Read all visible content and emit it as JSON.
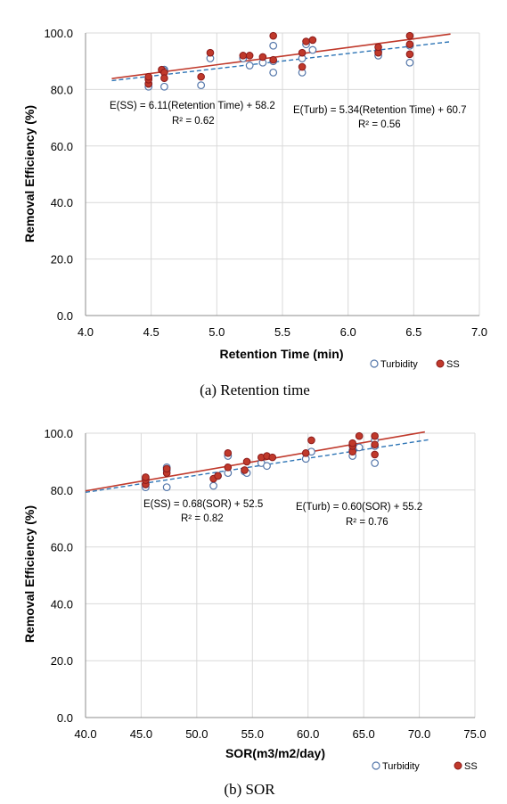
{
  "chart_data": [
    {
      "type": "scatter",
      "caption": "(a)  Retention  time",
      "xlabel": "Retention Time (min)",
      "ylabel": "Removal Efficiency (%)",
      "xlim": [
        4.0,
        7.0
      ],
      "ylim": [
        0.0,
        100.0
      ],
      "xticks": [
        "4.0",
        "4.5",
        "5.0",
        "5.5",
        "6.0",
        "6.5",
        "7.0"
      ],
      "yticks": [
        "0.0",
        "20.0",
        "40.0",
        "60.0",
        "80.0",
        "100.0"
      ],
      "grid": true,
      "legend_position": "bottom-right",
      "series": [
        {
          "name": "Turbidity",
          "marker": "open-circle",
          "x": [
            4.48,
            4.48,
            4.48,
            4.6,
            4.6,
            4.6,
            4.88,
            4.95,
            5.2,
            5.25,
            5.35,
            5.43,
            5.43,
            5.43,
            5.65,
            5.65,
            5.68,
            5.73,
            6.23,
            6.23,
            6.47,
            6.47
          ],
          "y": [
            81.0,
            82.0,
            84.0,
            81.0,
            87.0,
            86.5,
            81.5,
            91.0,
            91.0,
            88.5,
            89.5,
            86.0,
            90.0,
            95.5,
            86.0,
            91.0,
            96.0,
            94.0,
            92.0,
            93.5,
            89.5,
            95.5
          ]
        },
        {
          "name": "SS",
          "marker": "filled-circle",
          "x": [
            4.48,
            4.48,
            4.48,
            4.58,
            4.6,
            4.6,
            4.88,
            4.95,
            5.2,
            5.25,
            5.35,
            5.43,
            5.43,
            5.65,
            5.65,
            5.68,
            5.73,
            6.23,
            6.23,
            6.47,
            6.47,
            6.47
          ],
          "y": [
            82.0,
            83.5,
            84.5,
            87.0,
            86.0,
            84.0,
            84.5,
            93.0,
            92.0,
            92.0,
            91.5,
            90.5,
            99.0,
            88.0,
            93.0,
            97.0,
            97.5,
            93.0,
            95.0,
            92.5,
            96.0,
            99.0
          ]
        }
      ],
      "trendlines": [
        {
          "series": "SS",
          "color": "#c0392b",
          "style": "solid",
          "slope": 6.11,
          "intercept": 58.2,
          "x_range": [
            4.2,
            6.78
          ]
        },
        {
          "series": "Turbidity",
          "color": "#2e75b6",
          "style": "dashed",
          "slope": 5.34,
          "intercept": 60.7,
          "x_range": [
            4.2,
            6.78
          ]
        }
      ],
      "annotations": [
        {
          "text": "E(SS) = 6.11(Retention Time) + 58.2"
        },
        {
          "text": "R² = 0.62"
        },
        {
          "text": "E(Turb) = 5.34(Retention Time) + 60.7"
        },
        {
          "text": "R² = 0.56"
        }
      ]
    },
    {
      "type": "scatter",
      "caption": "(b)  SOR",
      "xlabel": "SOR(m3/m2/day)",
      "ylabel": "Removal Efficiency (%)",
      "xlim": [
        40.0,
        75.0
      ],
      "ylim": [
        0.0,
        100.0
      ],
      "xticks": [
        "40.0",
        "45.0",
        "50.0",
        "55.0",
        "60.0",
        "65.0",
        "70.0",
        "75.0"
      ],
      "yticks": [
        "0.0",
        "20.0",
        "40.0",
        "60.0",
        "80.0",
        "100.0"
      ],
      "grid": true,
      "legend_position": "bottom-right",
      "series": [
        {
          "name": "Turbidity",
          "marker": "open-circle",
          "x": [
            45.4,
            45.4,
            45.4,
            47.3,
            47.3,
            47.3,
            51.5,
            51.9,
            52.8,
            52.8,
            54.3,
            54.5,
            55.8,
            56.3,
            59.8,
            60.3,
            64.0,
            64.0,
            64.0,
            64.6,
            66.0,
            66.0,
            66.0
          ],
          "y": [
            81.0,
            82.0,
            84.0,
            81.0,
            87.0,
            88.0,
            81.5,
            85.0,
            86.0,
            92.0,
            86.5,
            86.0,
            89.5,
            88.5,
            91.0,
            93.5,
            92.0,
            94.0,
            96.0,
            95.0,
            89.5,
            95.5,
            97.5
          ]
        },
        {
          "name": "SS",
          "marker": "filled-circle",
          "x": [
            45.4,
            45.4,
            45.4,
            47.3,
            47.3,
            51.5,
            51.9,
            52.8,
            52.8,
            54.3,
            54.5,
            55.8,
            56.3,
            56.8,
            59.8,
            60.3,
            64.0,
            64.0,
            64.0,
            64.6,
            66.0,
            66.0,
            66.0
          ],
          "y": [
            82.0,
            83.5,
            84.5,
            86.0,
            87.5,
            84.0,
            85.0,
            88.0,
            93.0,
            87.0,
            90.0,
            91.5,
            92.0,
            91.5,
            93.0,
            97.5,
            93.5,
            95.5,
            96.5,
            99.0,
            92.5,
            96.0,
            99.0
          ]
        }
      ],
      "trendlines": [
        {
          "series": "SS",
          "color": "#c0392b",
          "style": "solid",
          "slope": 0.68,
          "intercept": 52.5,
          "x_range": [
            40.0,
            70.5
          ]
        },
        {
          "series": "Turbidity",
          "color": "#2e75b6",
          "style": "dashed",
          "slope": 0.6,
          "intercept": 55.2,
          "x_range": [
            40.0,
            71.0
          ]
        }
      ],
      "annotations": [
        {
          "text": "E(SS) = 0.68(SOR) + 52.5"
        },
        {
          "text": "R² = 0.82"
        },
        {
          "text": "E(Turb) = 0.60(SOR) + 55.2"
        },
        {
          "text": "R² = 0.76"
        }
      ]
    }
  ]
}
